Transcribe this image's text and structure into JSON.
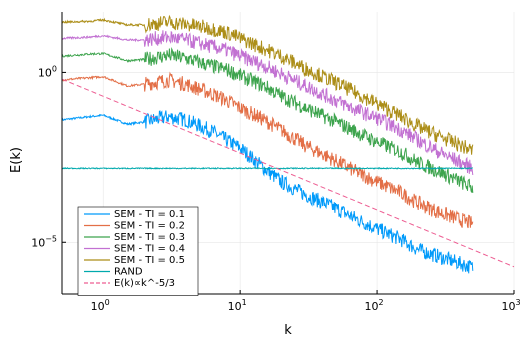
{
  "chart_data": {
    "type": "line",
    "xlabel": "k",
    "ylabel": "E(k)",
    "x_scale": "log",
    "y_scale": "log",
    "xlim": [
      0.5,
      1000
    ],
    "ylim": [
      3e-07,
      60
    ],
    "x_ticks": [
      {
        "value": 1,
        "base": "10",
        "exp": "0"
      },
      {
        "value": 10,
        "base": "10",
        "exp": "1"
      },
      {
        "value": 100,
        "base": "10",
        "exp": "2"
      },
      {
        "value": 1000,
        "base": "10",
        "exp": "3"
      }
    ],
    "y_ticks": [
      {
        "value": 1,
        "base": "10",
        "exp": "0"
      },
      {
        "value": 1e-05,
        "base": "10",
        "exp": "−5"
      }
    ],
    "grid": true,
    "legend_position": "bottom-left",
    "series": [
      {
        "name": "SEM - TI = 0.1",
        "color": "#009AFA",
        "x": [
          0.5,
          0.8,
          1,
          1.5,
          2,
          3,
          4,
          6,
          8,
          10,
          15,
          20,
          30,
          50,
          70,
          100,
          150,
          200,
          300,
          500
        ],
        "y": [
          0.04,
          0.05,
          0.055,
          0.03,
          0.035,
          0.05,
          0.04,
          0.02,
          0.01,
          0.006,
          0.0015,
          0.0006,
          0.00025,
          0.0001,
          5e-05,
          2.5e-05,
          1.2e-05,
          6e-06,
          3.5e-06,
          1.8e-06
        ]
      },
      {
        "name": "SEM - TI = 0.2",
        "color": "#E36F47",
        "x": [
          0.5,
          0.8,
          1,
          1.5,
          2,
          3,
          4,
          6,
          8,
          10,
          15,
          20,
          30,
          50,
          70,
          100,
          150,
          200,
          300,
          500
        ],
        "y": [
          0.6,
          0.7,
          0.75,
          0.4,
          0.45,
          0.6,
          0.45,
          0.25,
          0.15,
          0.09,
          0.04,
          0.02,
          0.007,
          0.0025,
          0.0012,
          0.0006,
          0.00028,
          0.00014,
          7e-05,
          3.5e-05
        ]
      },
      {
        "name": "SEM - TI = 0.3",
        "color": "#3EA44E",
        "x": [
          0.5,
          0.8,
          1,
          1.5,
          2,
          3,
          4,
          6,
          8,
          10,
          15,
          20,
          30,
          50,
          70,
          100,
          150,
          200,
          300,
          500
        ],
        "y": [
          3,
          3.5,
          3.6,
          2.2,
          2.4,
          3.2,
          2.6,
          1.6,
          1.2,
          0.8,
          0.4,
          0.2,
          0.09,
          0.035,
          0.018,
          0.009,
          0.0045,
          0.0022,
          0.0011,
          0.0004
        ]
      },
      {
        "name": "SEM - TI = 0.4",
        "color": "#C271D2",
        "x": [
          0.5,
          0.8,
          1,
          1.5,
          2,
          3,
          4,
          6,
          8,
          10,
          15,
          20,
          30,
          50,
          70,
          100,
          150,
          200,
          300,
          500
        ],
        "y": [
          10,
          11,
          12,
          9,
          9,
          11,
          9,
          6,
          4.5,
          3,
          1.6,
          0.9,
          0.4,
          0.15,
          0.08,
          0.045,
          0.02,
          0.01,
          0.004,
          0.0015
        ]
      },
      {
        "name": "SEM - TI = 0.5",
        "color": "#AC8E18",
        "x": [
          0.5,
          0.8,
          1,
          1.5,
          2,
          3,
          4,
          6,
          8,
          10,
          15,
          20,
          30,
          50,
          70,
          100,
          150,
          200,
          300,
          500
        ],
        "y": [
          30,
          32,
          35,
          25,
          25,
          30,
          26,
          20,
          15,
          10,
          5,
          3,
          1.3,
          0.5,
          0.25,
          0.12,
          0.05,
          0.025,
          0.012,
          0.005
        ]
      },
      {
        "name": "RAND",
        "color": "#00A9AD",
        "x": [
          0.5,
          1,
          2,
          5,
          10,
          20,
          50,
          100,
          200,
          500
        ],
        "y": [
          0.0015,
          0.0015,
          0.0015,
          0.0015,
          0.0015,
          0.0015,
          0.0015,
          0.0015,
          0.0015,
          0.0015
        ]
      },
      {
        "name": "E(k)∝k^-5/3",
        "color": "#ED5D92",
        "dashed": true,
        "x": [
          0.5,
          1000
        ],
        "y": [
          0.63,
          1.9e-06
        ]
      }
    ]
  }
}
